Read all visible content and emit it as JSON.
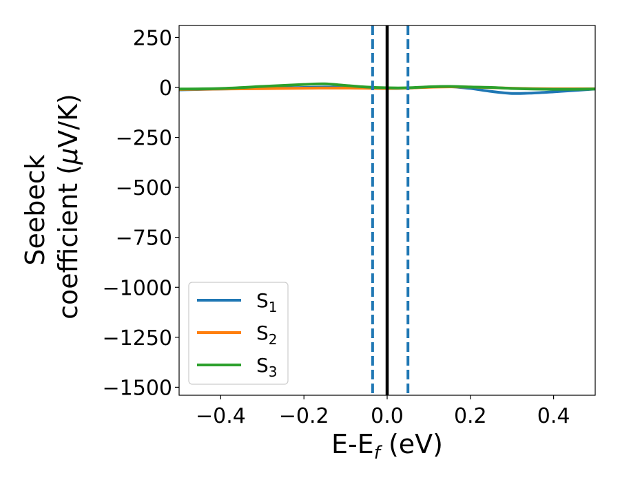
{
  "chart_data": {
    "type": "line",
    "title": "",
    "xlabel": {
      "main": "E-E",
      "sub": "f",
      "suffix": " (eV)"
    },
    "ylabel": {
      "line1": "Seebeck",
      "line2": "coefficient  (",
      "mu": "μ",
      "line2_suffix": "V/K)"
    },
    "xlim": [
      -0.5,
      0.5
    ],
    "ylim": [
      -1540,
      310
    ],
    "xticks": [
      -0.4,
      -0.2,
      0.0,
      0.2,
      0.4
    ],
    "xtick_labels": [
      "−0.4",
      "−0.2",
      "0.0",
      "0.2",
      "0.4"
    ],
    "yticks": [
      250,
      0,
      -250,
      -500,
      -750,
      -1000,
      -1250,
      -1500
    ],
    "ytick_labels": [
      "250",
      "0",
      "−250",
      "−500",
      "−750",
      "−1000",
      "−1250",
      "−1500"
    ],
    "vlines": [
      {
        "name": "fermi-level",
        "x": 0.0,
        "color": "#000000",
        "style": "solid"
      },
      {
        "name": "window-left",
        "x": -0.035,
        "color": "#1f77b4",
        "style": "dashed"
      },
      {
        "name": "window-right",
        "x": 0.05,
        "color": "#1f77b4",
        "style": "dashed"
      }
    ],
    "x": [
      -0.5,
      -0.4,
      -0.3,
      -0.2,
      -0.15,
      -0.1,
      -0.05,
      0.0,
      0.05,
      0.1,
      0.15,
      0.2,
      0.25,
      0.3,
      0.35,
      0.4,
      0.45,
      0.5
    ],
    "series": [
      {
        "name": "S",
        "sub": "1",
        "color": "#1f77b4",
        "values": [
          -12,
          -8,
          -4,
          0,
          2,
          0,
          -3,
          -5,
          -3,
          2,
          4,
          -5,
          -20,
          -30,
          -28,
          -22,
          -15,
          -8
        ]
      },
      {
        "name": "S",
        "sub": "2",
        "color": "#ff7f0e",
        "values": [
          -10,
          -8,
          -6,
          -4,
          -3,
          -3,
          -4,
          -5,
          -3,
          1,
          3,
          2,
          -1,
          -4,
          -6,
          -7,
          -7,
          -7
        ]
      },
      {
        "name": "S",
        "sub": "3",
        "color": "#2ca02c",
        "values": [
          -8,
          -5,
          5,
          15,
          18,
          10,
          2,
          -2,
          -2,
          3,
          5,
          2,
          0,
          -5,
          -8,
          -9,
          -9,
          -8
        ]
      }
    ],
    "legend_position": "lower-left"
  }
}
